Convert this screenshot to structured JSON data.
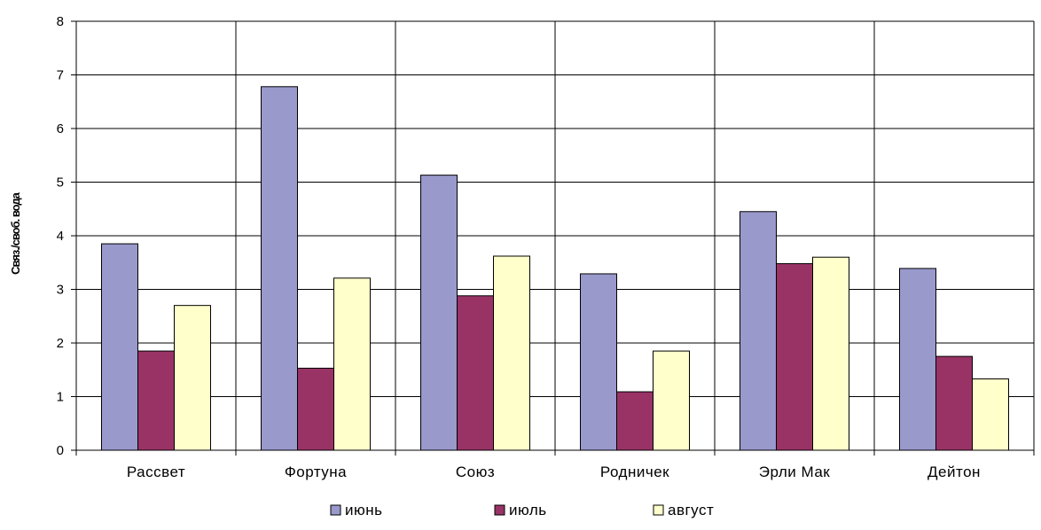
{
  "chart_data": {
    "type": "bar",
    "title": "",
    "xlabel": "",
    "ylabel": "Связ./своб. вода",
    "ylim": [
      0,
      8
    ],
    "yticks": [
      0,
      1,
      2,
      3,
      4,
      5,
      6,
      7,
      8
    ],
    "grid": true,
    "legend_position": "bottom",
    "categories": [
      "Рассвет",
      "Фортуна",
      "Союз",
      "Родничек",
      "Эрли Мак",
      "Дейтон"
    ],
    "series": [
      {
        "name": "июнь",
        "color": "#9999cc",
        "values": [
          3.85,
          6.78,
          5.13,
          3.29,
          4.45,
          3.39
        ]
      },
      {
        "name": "июль",
        "color": "#993366",
        "values": [
          1.85,
          1.53,
          2.88,
          1.09,
          3.48,
          1.75
        ]
      },
      {
        "name": "август",
        "color": "#ffffcc",
        "values": [
          2.7,
          3.21,
          3.62,
          1.85,
          3.6,
          1.33
        ]
      }
    ]
  }
}
